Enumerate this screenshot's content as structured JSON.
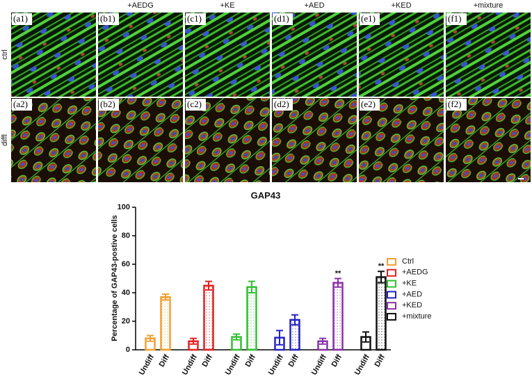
{
  "figure": {
    "column_headers": [
      "+AEDG",
      "+KE",
      "+AED",
      "+KED",
      "+mixture"
    ],
    "row_labels": [
      "ctrl",
      "diffl"
    ],
    "panels": [
      [
        "(a1)",
        "(b1)",
        "(c1)",
        "(d1)",
        "(e1)",
        "(f1)"
      ],
      [
        "(a2)",
        "(b2)",
        "(c2)",
        "(d2)",
        "(e2)",
        "(f2)"
      ]
    ]
  },
  "chart_data": {
    "type": "bar",
    "title": "GAP43",
    "y_label": "Percentage of GAP43-postive cells",
    "categories": [
      "Undiff",
      "Diff"
    ],
    "series": [
      {
        "name": "Ctrl",
        "color": "#f0a030",
        "values": [
          8,
          37
        ],
        "errors": [
          2,
          2
        ]
      },
      {
        "name": "+AEDG",
        "color": "#e02020",
        "values": [
          6,
          45
        ],
        "errors": [
          2,
          3
        ]
      },
      {
        "name": "+KE",
        "color": "#30c030",
        "values": [
          9,
          44
        ],
        "errors": [
          2,
          4
        ]
      },
      {
        "name": "+AED",
        "color": "#2222c0",
        "values": [
          8.5,
          21
        ],
        "errors": [
          5,
          3.5
        ]
      },
      {
        "name": "+KED",
        "color": "#8a30a8",
        "values": [
          6,
          47
        ],
        "errors": [
          2,
          3
        ]
      },
      {
        "name": "+mixture",
        "color": "#111111",
        "values": [
          9,
          51
        ],
        "errors": [
          3.5,
          4
        ]
      }
    ],
    "significance": [
      null,
      null,
      null,
      null,
      "**",
      "**"
    ],
    "ylim": [
      0,
      100
    ],
    "yticks": [
      0,
      20,
      40,
      60,
      80,
      100
    ]
  }
}
